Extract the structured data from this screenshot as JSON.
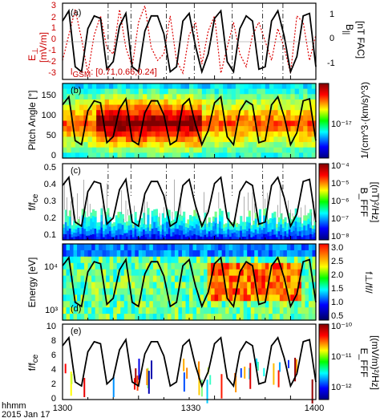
{
  "figure": {
    "footer_line1": "hhmm",
    "footer_line2": "2015 Jan 17",
    "x_tick_labels": [
      "1300",
      "1330",
      "1400"
    ]
  },
  "panels": {
    "a": {
      "label": "(a)",
      "left_axis_label": "E",
      "left_axis_sub": "⊥",
      "left_axis_units": "[mV/m]",
      "right_axis_label": "B",
      "right_axis_sub": "||",
      "right_axis_units": "[nT FAC]",
      "annotation": "l",
      "annotation_sub": "GSM",
      "annotation_value": ": [0.71,0.66,0.24]",
      "left_ticks": [
        "3",
        "2",
        "1",
        "0",
        "-1",
        "-2",
        "-3"
      ],
      "right_ticks": [
        "1",
        "0",
        "-1"
      ]
    },
    "b": {
      "label": "(b)",
      "ylabel": "Pitch Angle [°]",
      "y_ticks": [
        "150",
        "100",
        "50",
        "0"
      ],
      "cbar_label": "1/(cm^3·(km/s)^3)",
      "cbar_tick": "10⁻¹⁷"
    },
    "c": {
      "label": "(c)",
      "ylabel": "f/f",
      "ylabel_sub": "ce",
      "y_ticks": [
        "0.5",
        "0.4",
        "0.3",
        "0.2",
        "0.1"
      ],
      "cbar_label_1": "B_FFF",
      "cbar_label_2": "[(nT)²/Hz]",
      "cbar_ticks": [
        "10⁻⁴",
        "10⁻⁵",
        "10⁻⁶",
        "10⁻⁷",
        "10⁻⁸"
      ]
    },
    "d": {
      "label": "(d)",
      "ylabel": "Energy [eV]",
      "y_ticks": [
        "10⁴",
        "10³"
      ],
      "cbar_label": "f⊥/f//",
      "cbar_ticks": [
        "3.0",
        "2.5",
        "2.0",
        "1.5",
        "1.0",
        "0.5"
      ]
    },
    "e": {
      "label": "(e)",
      "ylabel": "f/f",
      "ylabel_sub": "ce",
      "y_ticks": [
        "10",
        "8",
        "6",
        "4",
        "2",
        "0"
      ],
      "cbar_label_1": "E_FFF",
      "cbar_label_2": "[(mV/m)²/Hz]",
      "cbar_ticks": [
        "10⁻¹⁰",
        "10⁻¹¹",
        "10⁻¹²"
      ]
    }
  },
  "chart_data": [
    {
      "type": "line",
      "panel": "a",
      "x_range": [
        1300,
        1400
      ],
      "series": [
        {
          "name": "E⊥",
          "color": "#dd0000",
          "style": "dotted",
          "y_range": [
            -3,
            3
          ],
          "values": [
            -1.5,
            0.5,
            2.5,
            0.2,
            -2.5,
            0.5,
            2.0,
            -0.5,
            -1.0,
            2.5,
            -0.5,
            -2.0,
            1.5,
            2.8,
            -0.5,
            -1.5,
            -1.0,
            2.0,
            -1.5,
            -2.5,
            0.5,
            1.5,
            -1.8,
            0.8,
            2.0,
            -2.5,
            -0.5,
            1.5,
            -1.0,
            -2.0,
            0.5,
            1.5,
            0.0,
            -1.5,
            1.0,
            -0.5,
            -2.5,
            2.0,
            1.5,
            -1.5,
            0.5
          ]
        },
        {
          "name": "B||",
          "color": "#000000",
          "style": "solid",
          "y_range": [
            -1.5,
            1.5
          ],
          "values": [
            0.8,
            1.2,
            -1.0,
            -1.2,
            0.5,
            1.0,
            0.9,
            -1.1,
            -0.8,
            0.6,
            1.1,
            -1.0,
            -1.2,
            0.4,
            1.0,
            1.0,
            0.3,
            -1.2,
            -1.0,
            0.8,
            1.1,
            -0.2,
            -1.2,
            -0.5,
            0.9,
            1.2,
            -0.8,
            -1.2,
            0.5,
            1.0,
            0.8,
            -1.1,
            -1.0,
            0.8,
            1.2,
            0.2,
            -1.2,
            -0.6,
            1.0,
            1.1,
            -1.0
          ]
        }
      ]
    },
    {
      "type": "heatmap",
      "panel": "b",
      "y_range": [
        0,
        180
      ],
      "overlay_line": "B|| (black)"
    },
    {
      "type": "heatmap",
      "panel": "c",
      "y_range": [
        0.07,
        0.52
      ],
      "overlay_line": "B|| (black)"
    },
    {
      "type": "heatmap",
      "panel": "d",
      "y_scale": "log",
      "y_range": [
        800,
        20000
      ],
      "overlay_line": "B|| (black)"
    },
    {
      "type": "heatmap",
      "panel": "e",
      "y_range": [
        0,
        10
      ],
      "overlay_line": "B|| (black)"
    }
  ],
  "colors": {
    "ebar_red": "#dd0000",
    "line_black": "#000000"
  }
}
